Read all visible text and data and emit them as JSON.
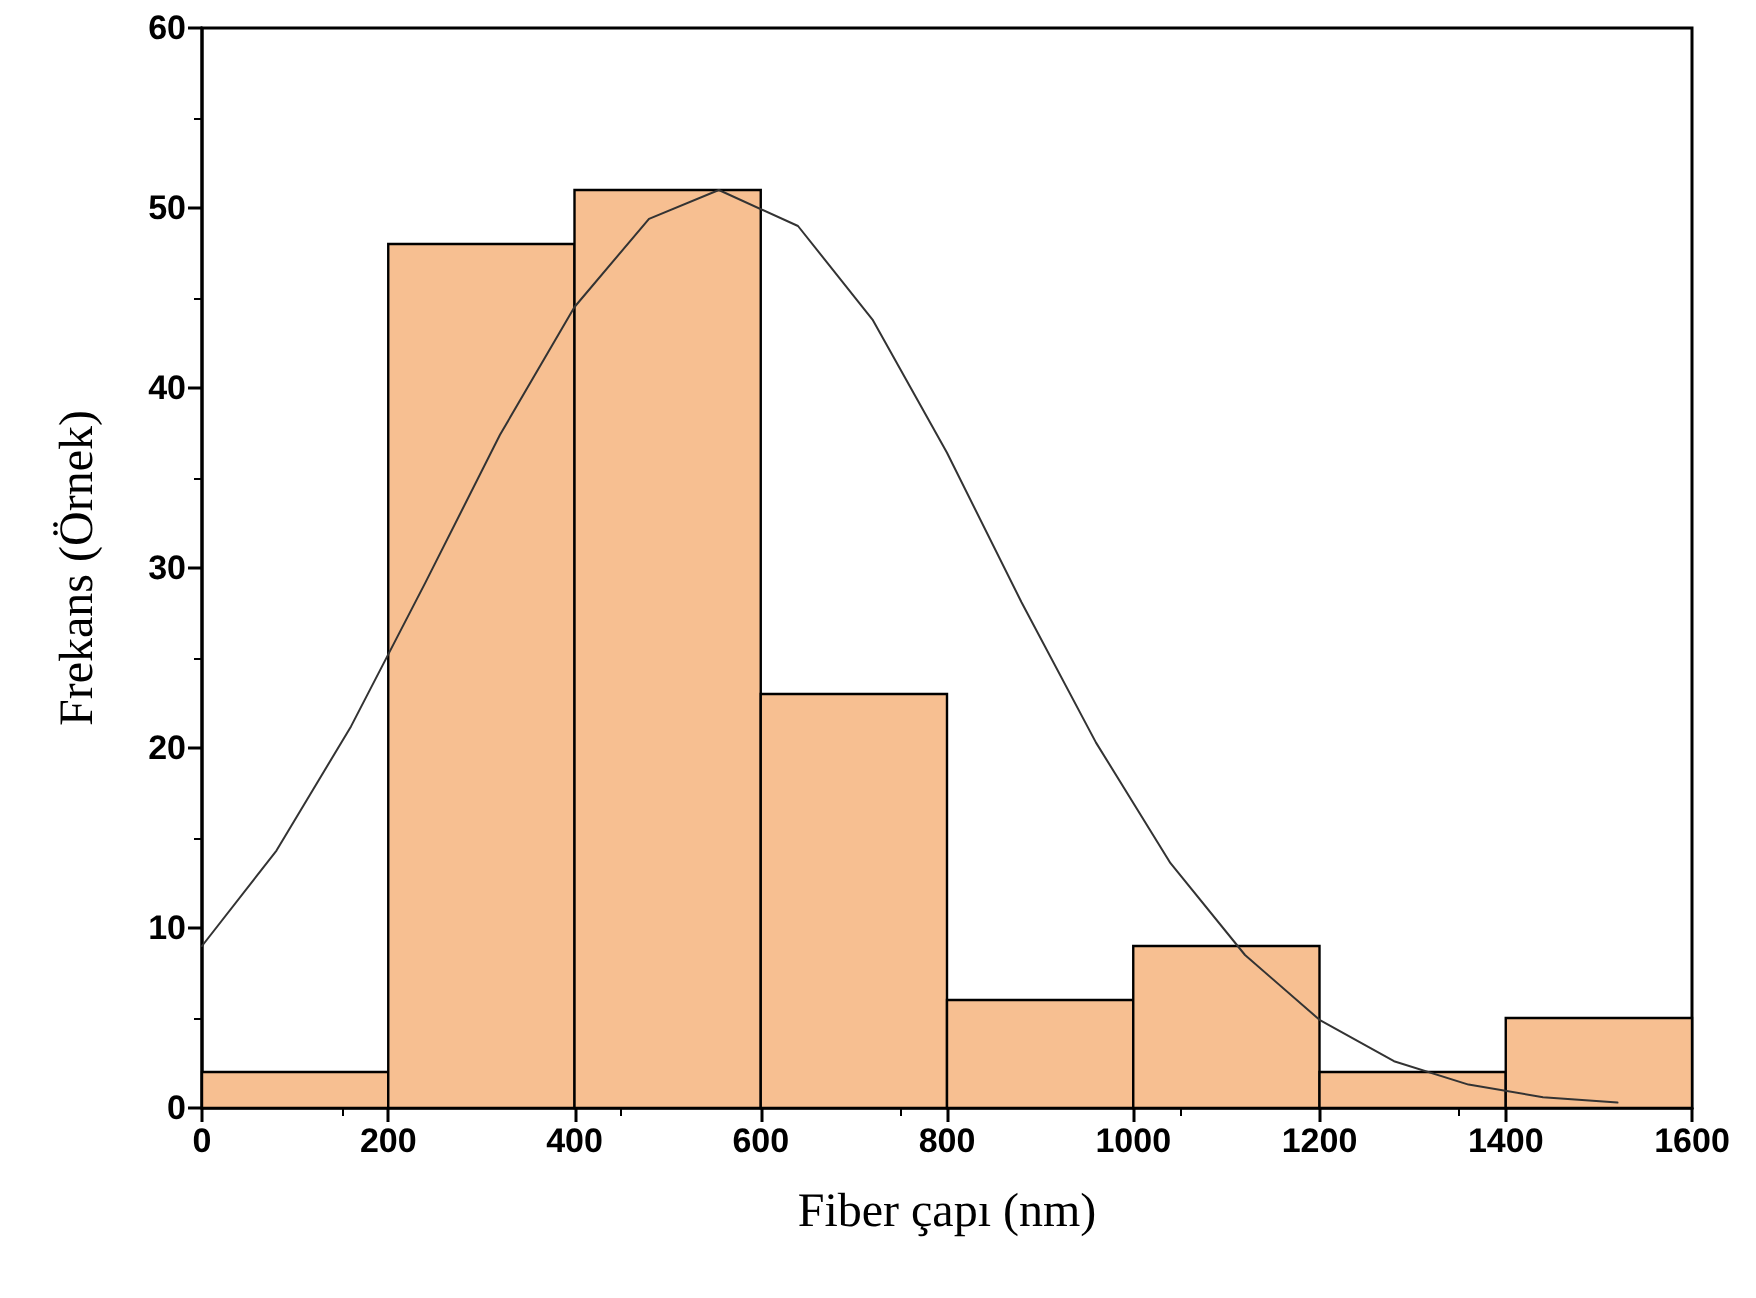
{
  "chart_data": {
    "type": "histogram",
    "xlabel": "Fiber çapı (nm)",
    "ylabel": "Frekans (Örnek)",
    "bins": [
      0,
      200,
      400,
      600,
      800,
      1000,
      1200,
      1400,
      1600
    ],
    "values": [
      2,
      48,
      51,
      23,
      6,
      9,
      2,
      5
    ],
    "color": "#f7bf91",
    "series": [
      {
        "type": "line",
        "color": "#333333",
        "x": [
          0,
          80,
          160,
          240,
          320,
          400,
          480,
          555,
          640,
          720,
          800,
          880,
          960,
          1040,
          1120,
          1200,
          1280,
          1360,
          1440,
          1520
        ],
        "values": [
          9.0,
          14.3,
          21.2,
          29.2,
          37.4,
          44.5,
          49.4,
          51.0,
          49.0,
          43.8,
          36.4,
          28.1,
          20.3,
          13.6,
          8.5,
          4.9,
          2.6,
          1.3,
          0.6,
          0.3
        ]
      }
    ],
    "xlim": [
      0,
      1600
    ],
    "xticks": [
      0,
      200,
      400,
      600,
      800,
      1000,
      1200,
      1400,
      1600
    ],
    "ylim": [
      0,
      60
    ],
    "yticks": [
      0,
      10,
      20,
      30,
      40,
      50,
      60
    ],
    "grid": false,
    "marker": "none",
    "line_style": "solid"
  }
}
